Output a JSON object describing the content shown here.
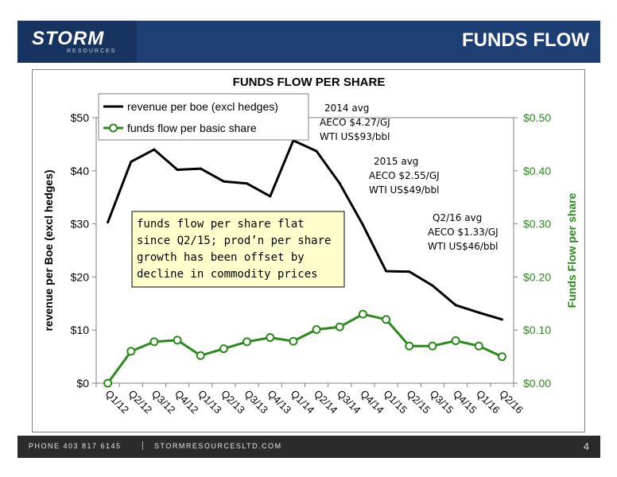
{
  "header": {
    "logo_text": "STORM",
    "logo_subtext": "RESOURCES",
    "page_title": "FUNDS FLOW"
  },
  "footer": {
    "phone": "PHONE 403 817 6145",
    "separator": "|",
    "website": "STORMRESOURCESLTD.COM",
    "page_number": "4"
  },
  "colors": {
    "header_bg": "#1e3f73",
    "series_revenue": "#000000",
    "series_funds_flow": "#2a8a1a",
    "annotation_box": "#ffffcc"
  },
  "chart_data": {
    "type": "line",
    "title": "FUNDS FLOW PER SHARE",
    "categories": [
      "Q1/12",
      "Q2/12",
      "Q3/12",
      "Q4/12",
      "Q1/13",
      "Q2/13",
      "Q3/13",
      "Q4/13",
      "Q1/14",
      "Q2/14",
      "Q3/14",
      "Q4/14",
      "Q1/15",
      "Q2/15",
      "Q3/15",
      "Q4/15",
      "Q1/16",
      "Q2/16"
    ],
    "ylabel": "revenue per Boe (excl hedges)",
    "y2label": "Funds Flow per share",
    "ylim": [
      0,
      50
    ],
    "y2lim": [
      0,
      0.5
    ],
    "y_ticks": [
      {
        "v": 0,
        "label": "$0"
      },
      {
        "v": 10,
        "label": "$10"
      },
      {
        "v": 20,
        "label": "$20"
      },
      {
        "v": 30,
        "label": "$30"
      },
      {
        "v": 40,
        "label": "$40"
      },
      {
        "v": 50,
        "label": "$50"
      }
    ],
    "y2_ticks": [
      {
        "v": 0,
        "label": "$0.00"
      },
      {
        "v": 0.1,
        "label": "$0.10"
      },
      {
        "v": 0.2,
        "label": "$0.20"
      },
      {
        "v": 0.3,
        "label": "$0.30"
      },
      {
        "v": 0.4,
        "label": "$0.40"
      },
      {
        "v": 0.5,
        "label": "$0.50"
      }
    ],
    "grid": false,
    "legend_position": "top-left",
    "series": [
      {
        "name": "revenue per boe (excl hedges)",
        "axis": "left",
        "color": "#000000",
        "markers": false,
        "values": [
          30.3,
          41.7,
          44.0,
          40.2,
          40.4,
          38.0,
          37.6,
          35.2,
          45.7,
          43.7,
          37.6,
          29.8,
          21.1,
          21.0,
          18.4,
          14.7,
          13.3,
          12.0
        ]
      },
      {
        "name": "funds flow per basic share",
        "axis": "right",
        "color": "#2a8a1a",
        "markers": true,
        "values": [
          0.0,
          0.06,
          0.078,
          0.081,
          0.052,
          0.065,
          0.078,
          0.086,
          0.079,
          0.101,
          0.106,
          0.13,
          0.12,
          0.07,
          0.07,
          0.08,
          0.07,
          0.05
        ]
      }
    ],
    "annotations": [
      {
        "anchor": "2014",
        "lines": [
          "2014 avg",
          "AECO $4.27/GJ",
          "WTI US$93/bbl"
        ]
      },
      {
        "anchor": "2015",
        "lines": [
          "2015 avg",
          "AECO $2.55/GJ",
          "WTI US$49/bbl"
        ]
      },
      {
        "anchor": "q216",
        "lines": [
          "Q2/16 avg",
          "AECO $1.33/GJ",
          "WTI US$46/bbl"
        ]
      }
    ],
    "callout_lines": [
      "funds flow per share flat",
      "since Q2/15; prod’n per share",
      "growth has been offset by",
      "decline in commodity prices"
    ]
  }
}
